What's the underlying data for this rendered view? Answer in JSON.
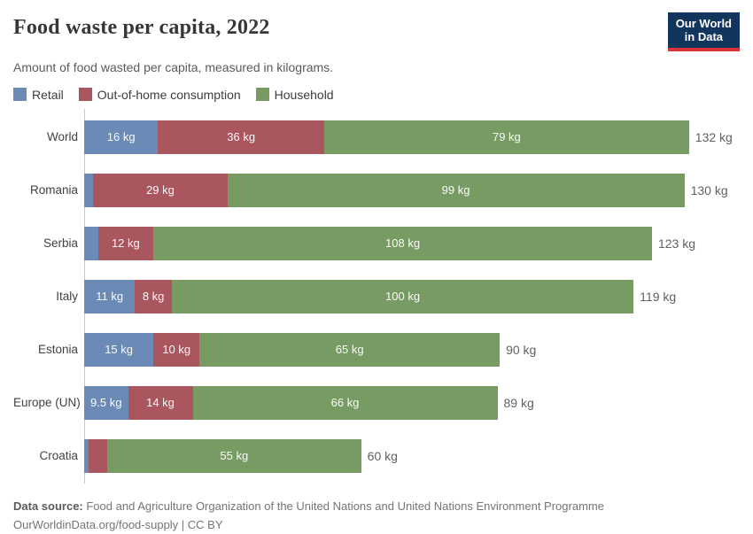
{
  "header": {
    "title": "Food waste per capita, 2022",
    "subtitle": "Amount of food wasted per capita, measured in kilograms.",
    "logo": {
      "line1": "Our World",
      "line2": "in Data"
    }
  },
  "colors": {
    "retail_blue": "#6c8ab6",
    "out_of_home_red": "#a9565f",
    "household_green": "#779b63",
    "logo_navy": "#12355e",
    "logo_red": "#d8353a",
    "axis_gray": "#c8c8c8"
  },
  "chart_data": {
    "type": "bar",
    "orientation": "horizontal",
    "stacked": true,
    "title": "Food waste per capita, 2022",
    "subtitle": "Amount of food wasted per capita, measured in kilograms.",
    "unit": "kg",
    "grid": false,
    "legend_position": "top",
    "xlim": [
      0,
      132
    ],
    "categories": [
      "World",
      "Romania",
      "Serbia",
      "Italy",
      "Estonia",
      "Europe (UN)",
      "Croatia"
    ],
    "series": [
      {
        "name": "Retail",
        "color": "#6c8ab6",
        "values": [
          16,
          2,
          3,
          11,
          15,
          9.5,
          1
        ],
        "bar_labels": [
          "16 kg",
          "",
          "",
          "11 kg",
          "15 kg",
          "9.5 kg",
          ""
        ]
      },
      {
        "name": "Out-of-home consumption",
        "color": "#a9565f",
        "values": [
          36,
          29,
          12,
          8,
          10,
          14,
          4
        ],
        "bar_labels": [
          "36 kg",
          "29 kg",
          "12 kg",
          "8 kg",
          "10 kg",
          "14 kg",
          ""
        ]
      },
      {
        "name": "Household",
        "color": "#779b63",
        "values": [
          79,
          99,
          108,
          100,
          65,
          66,
          55
        ],
        "bar_labels": [
          "79 kg",
          "99 kg",
          "108 kg",
          "100 kg",
          "65 kg",
          "66 kg",
          "55 kg"
        ]
      }
    ],
    "total_labels": [
      "132 kg",
      "130 kg",
      "123 kg",
      "119 kg",
      "90 kg",
      "89 kg",
      "60 kg"
    ]
  },
  "footer": {
    "source_label": "Data source:",
    "source_text": " Food and Agriculture Organization of the United Nations and United Nations Environment Programme",
    "link_line": "OurWorldinData.org/food-supply | CC BY"
  }
}
